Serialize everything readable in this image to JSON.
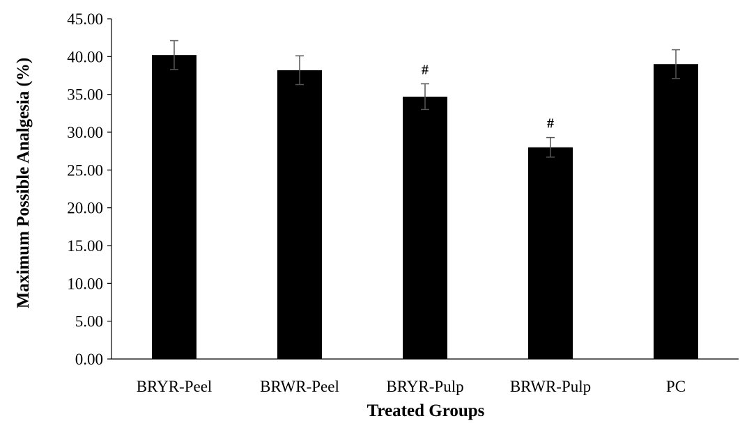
{
  "chart_data": {
    "type": "bar",
    "categories": [
      "BRYR-Peel",
      "BRWR-Peel",
      "BRYR-Pulp",
      "BRWR-Pulp",
      "PC"
    ],
    "values": [
      40.2,
      38.2,
      34.7,
      28.0,
      39.0
    ],
    "errors": [
      1.9,
      1.9,
      1.7,
      1.3,
      1.9
    ],
    "annotations": [
      "",
      "",
      "#",
      "#",
      ""
    ],
    "xlabel": "Treated Groups",
    "ylabel": "Maximum Possible Analgesia (%)",
    "ylim": [
      0,
      45
    ],
    "yticks": [
      "0.00",
      "5.00",
      "10.00",
      "15.00",
      "20.00",
      "25.00",
      "30.00",
      "35.00",
      "40.00",
      "45.00"
    ],
    "bar_color": "#000000",
    "grid": false,
    "legend": "none"
  }
}
